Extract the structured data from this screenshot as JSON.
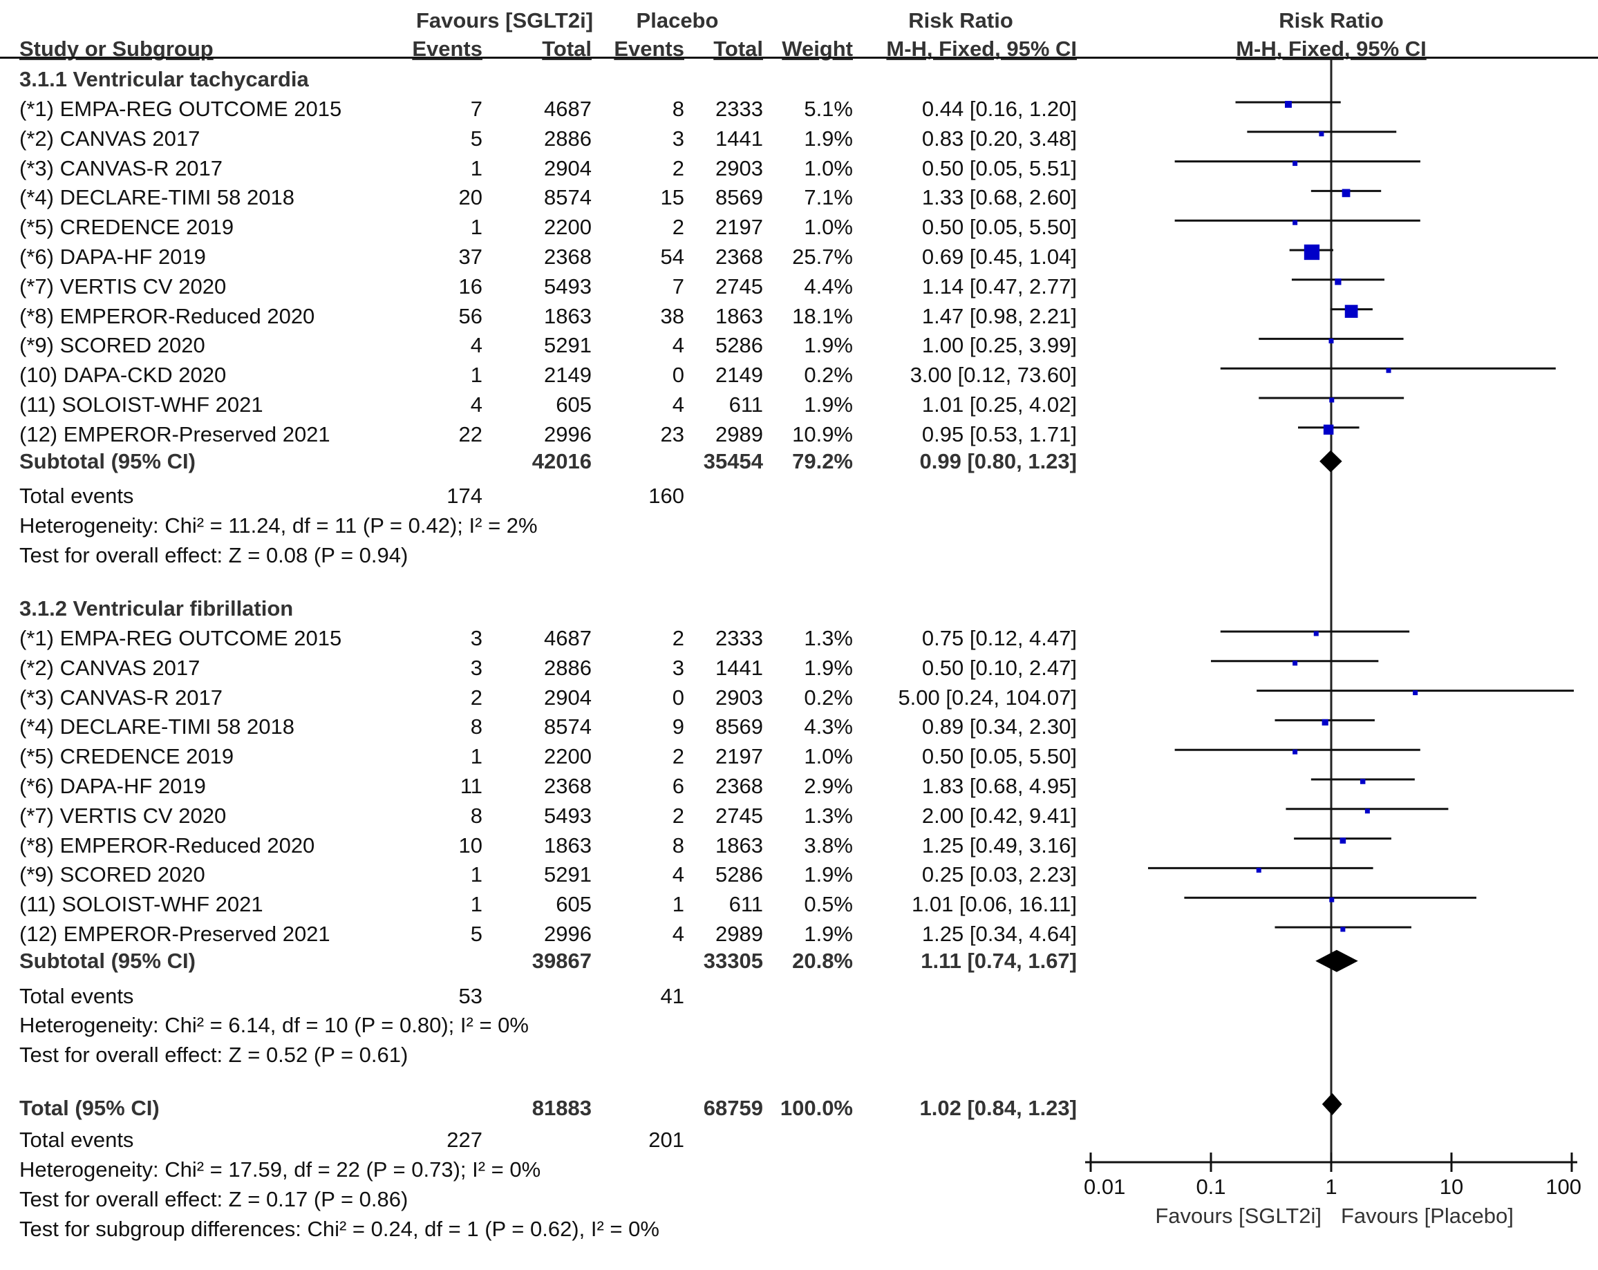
{
  "header": {
    "group1": "Favours [SGLT2i]",
    "group2": "Placebo",
    "rr_col_title": "Risk Ratio",
    "rr_plot_title": "Risk Ratio",
    "study_col": "Study or Subgroup",
    "events1": "Events",
    "total1": "Total",
    "events2": "Events",
    "total2": "Total",
    "weight": "Weight",
    "rr_col_method": "M-H, Fixed, 95% CI",
    "rr_plot_method": "M-H, Fixed, 95% CI"
  },
  "subgroups": [
    {
      "title": "3.1.1 Ventricular tachycardia",
      "studies": [
        {
          "name": "(*1) EMPA-REG OUTCOME 2015",
          "e1": "7",
          "n1": "4687",
          "e2": "8",
          "n2": "2333",
          "weight": "5.1%",
          "ci_text": "0.44 [0.16, 1.20]",
          "rr": 0.44,
          "lo": 0.16,
          "hi": 1.2,
          "w": 5.1
        },
        {
          "name": "(*2) CANVAS 2017",
          "e1": "5",
          "n1": "2886",
          "e2": "3",
          "n2": "1441",
          "weight": "1.9%",
          "ci_text": "0.83 [0.20, 3.48]",
          "rr": 0.83,
          "lo": 0.2,
          "hi": 3.48,
          "w": 1.9
        },
        {
          "name": "(*3) CANVAS-R 2017",
          "e1": "1",
          "n1": "2904",
          "e2": "2",
          "n2": "2903",
          "weight": "1.0%",
          "ci_text": "0.50 [0.05, 5.51]",
          "rr": 0.5,
          "lo": 0.05,
          "hi": 5.51,
          "w": 1.0
        },
        {
          "name": "(*4) DECLARE-TIMI 58 2018",
          "e1": "20",
          "n1": "8574",
          "e2": "15",
          "n2": "8569",
          "weight": "7.1%",
          "ci_text": "1.33 [0.68, 2.60]",
          "rr": 1.33,
          "lo": 0.68,
          "hi": 2.6,
          "w": 7.1
        },
        {
          "name": "(*5) CREDENCE 2019",
          "e1": "1",
          "n1": "2200",
          "e2": "2",
          "n2": "2197",
          "weight": "1.0%",
          "ci_text": "0.50 [0.05, 5.50]",
          "rr": 0.5,
          "lo": 0.05,
          "hi": 5.5,
          "w": 1.0
        },
        {
          "name": "(*6) DAPA-HF 2019",
          "e1": "37",
          "n1": "2368",
          "e2": "54",
          "n2": "2368",
          "weight": "25.7%",
          "ci_text": "0.69 [0.45, 1.04]",
          "rr": 0.69,
          "lo": 0.45,
          "hi": 1.04,
          "w": 25.7
        },
        {
          "name": "(*7) VERTIS CV 2020",
          "e1": "16",
          "n1": "5493",
          "e2": "7",
          "n2": "2745",
          "weight": "4.4%",
          "ci_text": "1.14 [0.47, 2.77]",
          "rr": 1.14,
          "lo": 0.47,
          "hi": 2.77,
          "w": 4.4
        },
        {
          "name": "(*8) EMPEROR-Reduced 2020",
          "e1": "56",
          "n1": "1863",
          "e2": "38",
          "n2": "1863",
          "weight": "18.1%",
          "ci_text": "1.47 [0.98, 2.21]",
          "rr": 1.47,
          "lo": 0.98,
          "hi": 2.21,
          "w": 18.1
        },
        {
          "name": "(*9) SCORED 2020",
          "e1": "4",
          "n1": "5291",
          "e2": "4",
          "n2": "5286",
          "weight": "1.9%",
          "ci_text": "1.00 [0.25, 3.99]",
          "rr": 1.0,
          "lo": 0.25,
          "hi": 3.99,
          "w": 1.9
        },
        {
          "name": "(10) DAPA-CKD 2020",
          "e1": "1",
          "n1": "2149",
          "e2": "0",
          "n2": "2149",
          "weight": "0.2%",
          "ci_text": "3.00 [0.12, 73.60]",
          "rr": 3.0,
          "lo": 0.12,
          "hi": 73.6,
          "w": 0.2
        },
        {
          "name": "(11) SOLOIST-WHF 2021",
          "e1": "4",
          "n1": "605",
          "e2": "4",
          "n2": "611",
          "weight": "1.9%",
          "ci_text": "1.01 [0.25, 4.02]",
          "rr": 1.01,
          "lo": 0.25,
          "hi": 4.02,
          "w": 1.9
        },
        {
          "name": "(12) EMPEROR-Preserved 2021",
          "e1": "22",
          "n1": "2996",
          "e2": "23",
          "n2": "2989",
          "weight": "10.9%",
          "ci_text": "0.95 [0.53, 1.71]",
          "rr": 0.95,
          "lo": 0.53,
          "hi": 1.71,
          "w": 10.9
        }
      ],
      "subtotal": {
        "label": "Subtotal (95% CI)",
        "n1": "42016",
        "n2": "35454",
        "weight": "79.2%",
        "ci_text": "0.99 [0.80, 1.23]",
        "rr": 0.99,
        "lo": 0.8,
        "hi": 1.23
      },
      "total_events": {
        "label": "Total events",
        "e1": "174",
        "e2": "160"
      },
      "heterogeneity": "Heterogeneity: Chi² = 11.24, df = 11 (P = 0.42); I² = 2%",
      "overall_effect": "Test for overall effect: Z = 0.08 (P = 0.94)"
    },
    {
      "title": "3.1.2 Ventricular fibrillation",
      "studies": [
        {
          "name": "(*1) EMPA-REG OUTCOME 2015",
          "e1": "3",
          "n1": "4687",
          "e2": "2",
          "n2": "2333",
          "weight": "1.3%",
          "ci_text": "0.75 [0.12, 4.47]",
          "rr": 0.75,
          "lo": 0.12,
          "hi": 4.47,
          "w": 1.3
        },
        {
          "name": "(*2) CANVAS 2017",
          "e1": "3",
          "n1": "2886",
          "e2": "3",
          "n2": "1441",
          "weight": "1.9%",
          "ci_text": "0.50 [0.10, 2.47]",
          "rr": 0.5,
          "lo": 0.1,
          "hi": 2.47,
          "w": 1.9
        },
        {
          "name": "(*3) CANVAS-R 2017",
          "e1": "2",
          "n1": "2904",
          "e2": "0",
          "n2": "2903",
          "weight": "0.2%",
          "ci_text": "5.00 [0.24, 104.07]",
          "rr": 5.0,
          "lo": 0.24,
          "hi": 104.07,
          "w": 0.2
        },
        {
          "name": "(*4) DECLARE-TIMI 58 2018",
          "e1": "8",
          "n1": "8574",
          "e2": "9",
          "n2": "8569",
          "weight": "4.3%",
          "ci_text": "0.89 [0.34, 2.30]",
          "rr": 0.89,
          "lo": 0.34,
          "hi": 2.3,
          "w": 4.3
        },
        {
          "name": "(*5) CREDENCE 2019",
          "e1": "1",
          "n1": "2200",
          "e2": "2",
          "n2": "2197",
          "weight": "1.0%",
          "ci_text": "0.50 [0.05, 5.50]",
          "rr": 0.5,
          "lo": 0.05,
          "hi": 5.5,
          "w": 1.0
        },
        {
          "name": "(*6) DAPA-HF 2019",
          "e1": "11",
          "n1": "2368",
          "e2": "6",
          "n2": "2368",
          "weight": "2.9%",
          "ci_text": "1.83 [0.68, 4.95]",
          "rr": 1.83,
          "lo": 0.68,
          "hi": 4.95,
          "w": 2.9
        },
        {
          "name": "(*7) VERTIS CV 2020",
          "e1": "8",
          "n1": "5493",
          "e2": "2",
          "n2": "2745",
          "weight": "1.3%",
          "ci_text": "2.00 [0.42, 9.41]",
          "rr": 2.0,
          "lo": 0.42,
          "hi": 9.41,
          "w": 1.3
        },
        {
          "name": "(*8) EMPEROR-Reduced 2020",
          "e1": "10",
          "n1": "1863",
          "e2": "8",
          "n2": "1863",
          "weight": "3.8%",
          "ci_text": "1.25 [0.49, 3.16]",
          "rr": 1.25,
          "lo": 0.49,
          "hi": 3.16,
          "w": 3.8
        },
        {
          "name": "(*9) SCORED 2020",
          "e1": "1",
          "n1": "5291",
          "e2": "4",
          "n2": "5286",
          "weight": "1.9%",
          "ci_text": "0.25 [0.03, 2.23]",
          "rr": 0.25,
          "lo": 0.03,
          "hi": 2.23,
          "w": 1.9
        },
        {
          "name": "(11) SOLOIST-WHF 2021",
          "e1": "1",
          "n1": "605",
          "e2": "1",
          "n2": "611",
          "weight": "0.5%",
          "ci_text": "1.01 [0.06, 16.11]",
          "rr": 1.01,
          "lo": 0.06,
          "hi": 16.11,
          "w": 0.5
        },
        {
          "name": "(12) EMPEROR-Preserved 2021",
          "e1": "5",
          "n1": "2996",
          "e2": "4",
          "n2": "2989",
          "weight": "1.9%",
          "ci_text": "1.25 [0.34, 4.64]",
          "rr": 1.25,
          "lo": 0.34,
          "hi": 4.64,
          "w": 1.9
        }
      ],
      "subtotal": {
        "label": "Subtotal (95% CI)",
        "n1": "39867",
        "n2": "33305",
        "weight": "20.8%",
        "ci_text": "1.11 [0.74, 1.67]",
        "rr": 1.11,
        "lo": 0.74,
        "hi": 1.67
      },
      "total_events": {
        "label": "Total events",
        "e1": "53",
        "e2": "41"
      },
      "heterogeneity": "Heterogeneity: Chi² = 6.14, df = 10 (P = 0.80); I² = 0%",
      "overall_effect": "Test for overall effect: Z = 0.52 (P = 0.61)"
    }
  ],
  "total": {
    "label": "Total (95% CI)",
    "n1": "81883",
    "n2": "68759",
    "weight": "100.0%",
    "ci_text": "1.02 [0.84, 1.23]",
    "rr": 1.02,
    "lo": 0.84,
    "hi": 1.23,
    "events_label": "Total events",
    "e1": "227",
    "e2": "201",
    "heterogeneity": "Heterogeneity: Chi² = 17.59, df = 22 (P = 0.73); I² = 0%",
    "overall_effect": "Test for overall effect: Z = 0.17 (P = 0.86)",
    "subgroup_diff": "Test for subgroup differences: Chi² = 0.24, df = 1 (P = 0.62), I² = 0%"
  },
  "colors": {
    "marker": "#0000c8",
    "line": "#111111",
    "diamond": "#000000"
  },
  "chart_data": {
    "type": "scatter",
    "subtype": "forest-plot",
    "title": "Risk Ratio",
    "subtitle": "M-H, Fixed, 95% CI",
    "x_scale": "log",
    "xlim": [
      0.01,
      100
    ],
    "x_ticks": [
      0.01,
      0.1,
      1,
      10,
      100
    ],
    "x_tick_labels": [
      "0.01",
      "0.1",
      "1",
      "10",
      "100"
    ],
    "null_line": 1,
    "xlabel_left": "Favours [SGLT2i]",
    "xlabel_right": "Favours [Placebo]",
    "grid": false,
    "series": [
      {
        "name": "3.1.1 Ventricular tachycardia",
        "estimates": [
          0.44,
          0.83,
          0.5,
          1.33,
          0.5,
          0.69,
          1.14,
          1.47,
          1.0,
          3.0,
          1.01,
          0.95
        ],
        "subtotal": [
          0.99,
          0.8,
          1.23
        ]
      },
      {
        "name": "3.1.2 Ventricular fibrillation",
        "estimates": [
          0.75,
          0.5,
          5.0,
          0.89,
          0.5,
          1.83,
          2.0,
          1.25,
          0.25,
          1.01,
          1.25
        ],
        "subtotal": [
          1.11,
          0.74,
          1.67
        ]
      }
    ],
    "overall": [
      1.02,
      0.84,
      1.23
    ]
  }
}
